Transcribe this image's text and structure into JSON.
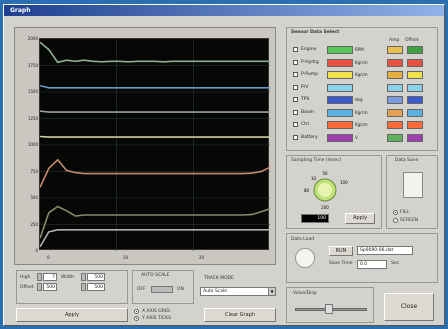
{
  "window": {
    "title": "Graph"
  },
  "graph": {
    "y_ticks": [
      "2000",
      "1750",
      "1500",
      "1250",
      "1000",
      "750",
      "500",
      "250",
      "0"
    ],
    "x_ticks": [
      "0",
      "10",
      "20"
    ],
    "colors": {
      "background": "#060806",
      "grid": "#2f3a2f"
    }
  },
  "chart_data": {
    "type": "line",
    "x": [
      0,
      1,
      2,
      3,
      4,
      5,
      6,
      7,
      8,
      9,
      10,
      11,
      12,
      13,
      14,
      15,
      16,
      17,
      18,
      19,
      20,
      21,
      22,
      23,
      24,
      25,
      26
    ],
    "ylim": [
      0,
      2000
    ],
    "series": [
      {
        "color": "#8fb08f",
        "values": [
          1970,
          1900,
          1780,
          1800,
          1790,
          1800,
          1790,
          1785,
          1790,
          1790,
          1785,
          1790,
          1790,
          1790,
          1785,
          1790,
          1790,
          1790,
          1790,
          1790,
          1790,
          1790,
          1790,
          1790,
          1790,
          1790,
          1790
        ]
      },
      {
        "color": "#6a9ac8",
        "values": [
          1560,
          1540,
          1540,
          1540,
          1540,
          1540,
          1540,
          1540,
          1540,
          1540,
          1540,
          1540,
          1540,
          1540,
          1540,
          1540,
          1540,
          1540,
          1540,
          1540,
          1540,
          1540,
          1540,
          1540,
          1540,
          1540,
          1540
        ]
      },
      {
        "color": "#9aa0a0",
        "values": [
          1320,
          1310,
          1310,
          1310,
          1310,
          1310,
          1310,
          1310,
          1310,
          1310,
          1310,
          1310,
          1310,
          1310,
          1310,
          1310,
          1310,
          1310,
          1310,
          1310,
          1310,
          1310,
          1310,
          1310,
          1310,
          1310,
          1310
        ]
      },
      {
        "color": "#cfcf9a",
        "values": [
          1080,
          1075,
          1075,
          1075,
          1075,
          1075,
          1075,
          1075,
          1075,
          1075,
          1075,
          1075,
          1075,
          1075,
          1075,
          1075,
          1075,
          1075,
          1075,
          1075,
          1075,
          1075,
          1075,
          1075,
          1075,
          1075,
          1075
        ]
      },
      {
        "color": "#c88a6a",
        "values": [
          600,
          780,
          860,
          760,
          740,
          730,
          730,
          730,
          730,
          730,
          730,
          730,
          730,
          730,
          730,
          730,
          730,
          730,
          730,
          730,
          730,
          730,
          730,
          730,
          735,
          750,
          790
        ]
      },
      {
        "color": "#8a8a6a",
        "values": [
          120,
          360,
          420,
          380,
          330,
          340,
          340,
          340,
          340,
          340,
          340,
          340,
          340,
          340,
          340,
          340,
          340,
          340,
          340,
          340,
          340,
          340,
          340,
          340,
          345,
          370,
          400
        ]
      },
      {
        "color": "#b0b0b0",
        "values": [
          40,
          180,
          200,
          200,
          200,
          200,
          200,
          200,
          200,
          200,
          200,
          200,
          200,
          200,
          200,
          200,
          200,
          200,
          200,
          200,
          200,
          200,
          200,
          200,
          200,
          200,
          200
        ]
      }
    ]
  },
  "controls": {
    "high_label": "High",
    "offset_label": "Offset",
    "width_label": "Width",
    "high_value": "7",
    "offset_value": "500",
    "width_value": "500",
    "apply_label": "Apply",
    "auto_scale_label": "AUTO SCALE",
    "off_label": "OFF",
    "on_label": "ON",
    "track_mode_label": "TRACK MODE",
    "track_mode_value": "Auto Scale",
    "clear_graph_label": "Clear Graph",
    "x_axis_grid": "X AXIS GRID",
    "y_axis_ticks": "Y AXIS TICKS"
  },
  "sensor_panel": {
    "title": "Sensor Data Select",
    "amp_header": "Amp",
    "offset_header": "Offset",
    "sensors": [
      {
        "name": "Engine",
        "unit": "RPM",
        "color": "#5cc85c",
        "amp_color": "#e8c050",
        "off_color": "#3fa03f"
      },
      {
        "name": "P-Hydrg",
        "unit": "Kg/cm",
        "color": "#e85040",
        "amp_color": "#e85040",
        "off_color": "#e85040"
      },
      {
        "name": "P-Pump",
        "unit": "Kg/cm",
        "color": "#f0e04a",
        "amp_color": "#e8b040",
        "off_color": "#f0e04a"
      },
      {
        "name": "P/V",
        "unit": "",
        "color": "#8ad0e8",
        "amp_color": "#8ad0e8",
        "off_color": "#8ad0e8"
      },
      {
        "name": "TPS",
        "unit": "deg",
        "color": "#3a5ad0",
        "amp_color": "#7a9ae0",
        "off_color": "#3a5ad0"
      },
      {
        "name": "Boom",
        "unit": "Kg/cm",
        "color": "#5ab0e0",
        "amp_color": "#e8a050",
        "off_color": "#5ab0e0"
      },
      {
        "name": "Ctrl",
        "unit": "Kg/cm",
        "color": "#ff6a3a",
        "amp_color": "#ff6a3a",
        "off_color": "#ff6a3a"
      },
      {
        "name": "Battery",
        "unit": "V",
        "color": "#a040b0",
        "amp_color": "#60b060",
        "off_color": "#a040b0"
      }
    ]
  },
  "sampling": {
    "title": "Sampling Time (msec)",
    "dial_ticks": [
      "10",
      "50",
      "100",
      "200",
      "80"
    ],
    "current_value": "100",
    "apply_label": "Apply"
  },
  "data_save": {
    "title": "Data Save",
    "opt1": "FILL",
    "opt2": "SCREEN"
  },
  "data_load": {
    "title": "Data Load",
    "run_label": "RUN",
    "file_value": "Sp9090-06.dat",
    "save_time_label": "Save Time",
    "save_time_value": "0.0",
    "sec_label": "Sec"
  },
  "gain": {
    "title": "Valve/Disp"
  },
  "close_label": "Close"
}
